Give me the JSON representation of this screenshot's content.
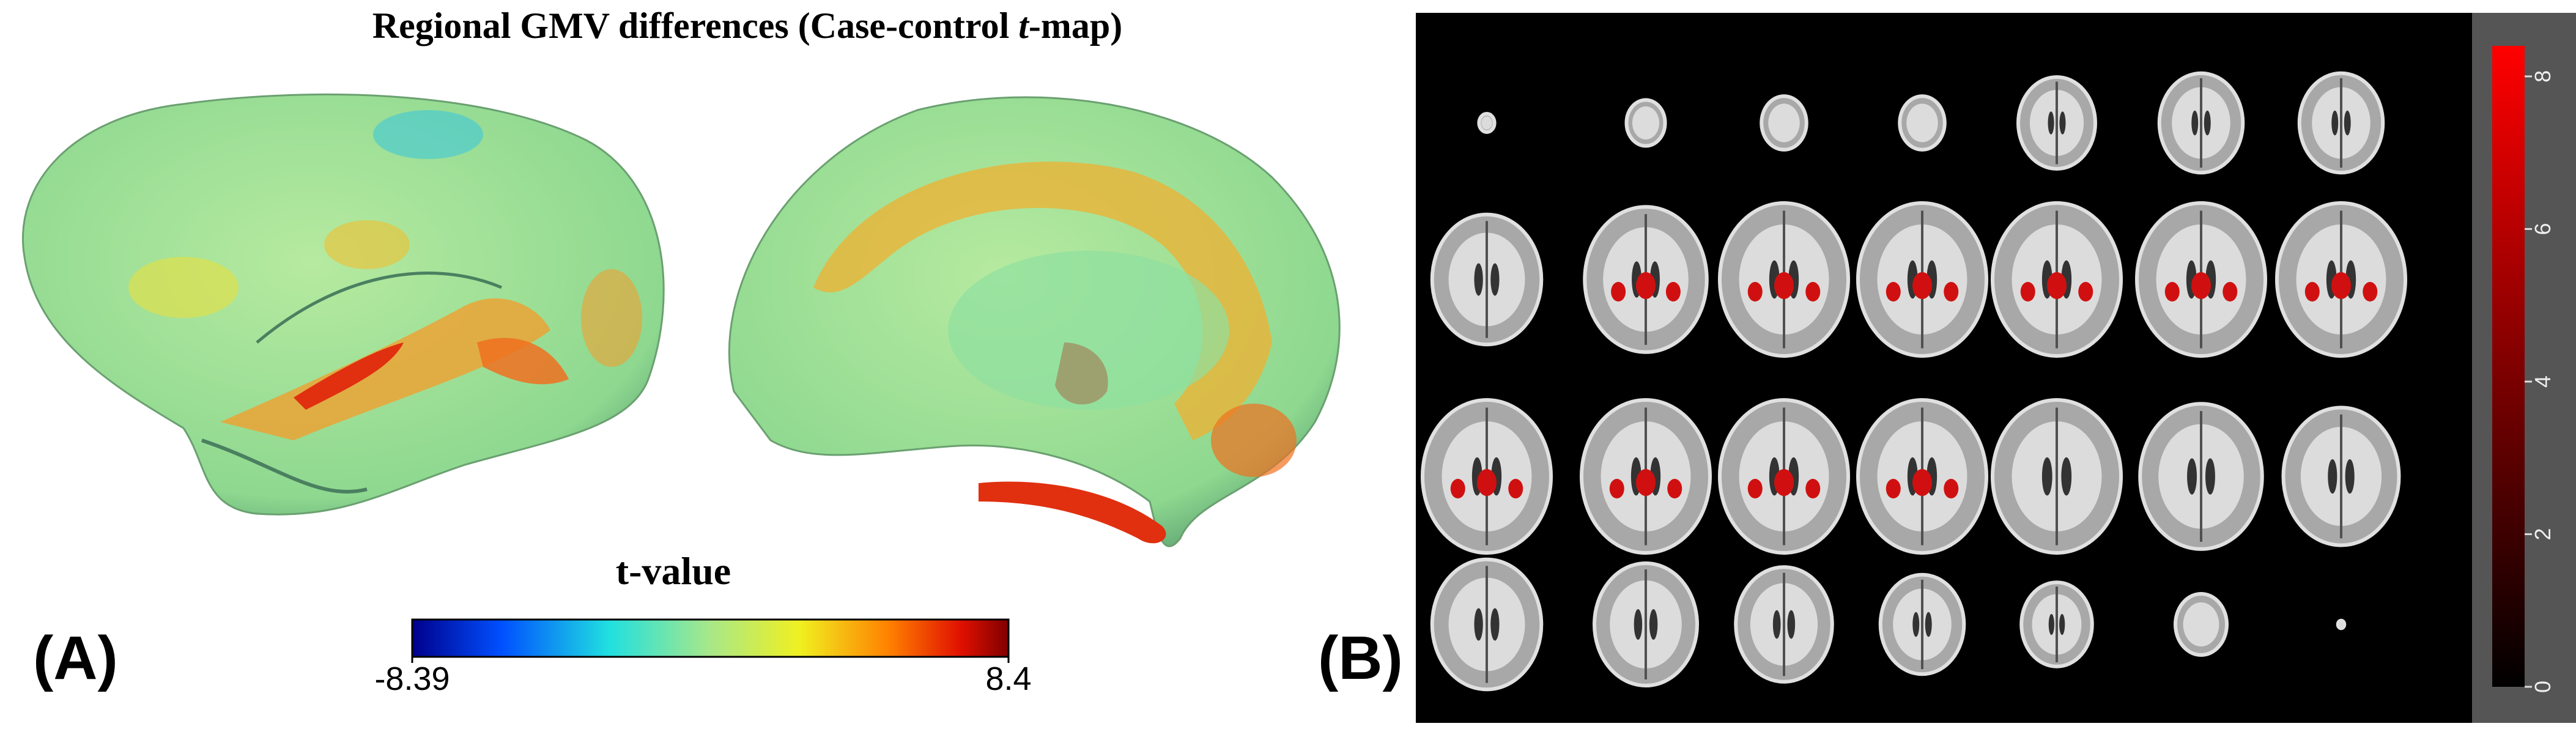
{
  "panel_a": {
    "label": "(A)",
    "title": {
      "before": "Regional GMV differences (Case-control ",
      "italic": "t",
      "after": "-map)"
    },
    "colorbar": {
      "title": "t-value",
      "lim": [
        -8.39,
        8.4
      ]
    }
  },
  "panel_b": {
    "label": "(B)",
    "colorbar": {
      "ylim": [
        0,
        8.4
      ],
      "yticks": [
        0,
        2,
        4,
        6,
        8
      ]
    }
  }
}
